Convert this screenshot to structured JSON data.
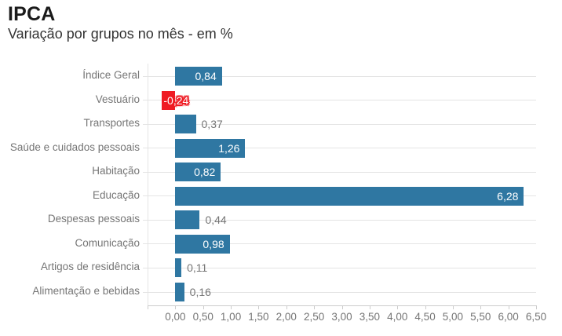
{
  "header": {
    "title": "IPCA",
    "subtitle": "Variação por grupos no mês - em %"
  },
  "chart_data": {
    "type": "bar",
    "orientation": "horizontal",
    "title": "IPCA",
    "subtitle": "Variação por grupos no mês - em %",
    "categories": [
      "Índice Geral",
      "Vestuário",
      "Transportes",
      "Saúde e cuidados pessoais",
      "Habitação",
      "Educação",
      "Despesas pessoais",
      "Comunicação",
      "Artigos de residência",
      "Alimentação e bebidas"
    ],
    "values": [
      0.84,
      -0.24,
      0.37,
      1.26,
      0.82,
      6.28,
      0.44,
      0.98,
      0.11,
      0.16
    ],
    "value_labels": [
      "0,84",
      "-0,24",
      "0,37",
      "1,26",
      "0,82",
      "6,28",
      "0,44",
      "0,98",
      "0,11",
      "0,16"
    ],
    "value_label_style": [
      "inside",
      "halo",
      "outside",
      "inside",
      "inside",
      "inside",
      "outside",
      "inside",
      "outside",
      "outside"
    ],
    "xlim": [
      -0.5,
      6.5
    ],
    "x_tick_step": 0.5,
    "x_tick_labels": [
      "0,00",
      "0,50",
      "1,00",
      "1,50",
      "2,00",
      "2,50",
      "3,00",
      "3,50",
      "4,00",
      "4,50",
      "5,00",
      "5,50",
      "6,00",
      "6,50"
    ],
    "xlabel": "",
    "ylabel": "",
    "legend": "none",
    "grid": "horizontal-leader-lines",
    "colors": {
      "bar_positive": "#2f77a2",
      "bar_negative": "#ef1c24",
      "value_inside": "#ffffff",
      "value_outside": "#757575",
      "category_label": "#757575",
      "grid_line": "#e4e4e4",
      "axis_line": "#cccccc",
      "tick_label": "#757575",
      "title": "#1a1a1a",
      "subtitle": "#333333",
      "background": "#ffffff"
    }
  }
}
